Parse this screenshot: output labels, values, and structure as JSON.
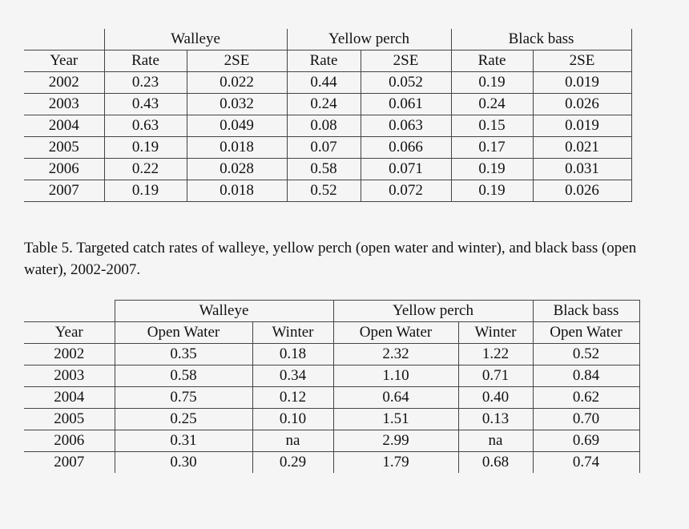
{
  "table1": {
    "groups": [
      "Walleye",
      "Yellow perch",
      "Black bass"
    ],
    "columns": [
      "Year",
      "Rate",
      "2SE",
      "Rate",
      "2SE",
      "Rate",
      "2SE"
    ],
    "rows": [
      [
        "2002",
        "0.23",
        "0.022",
        "0.44",
        "0.052",
        "0.19",
        "0.019"
      ],
      [
        "2003",
        "0.43",
        "0.032",
        "0.24",
        "0.061",
        "0.24",
        "0.026"
      ],
      [
        "2004",
        "0.63",
        "0.049",
        "0.08",
        "0.063",
        "0.15",
        "0.019"
      ],
      [
        "2005",
        "0.19",
        "0.018",
        "0.07",
        "0.066",
        "0.17",
        "0.021"
      ],
      [
        "2006",
        "0.22",
        "0.028",
        "0.58",
        "0.071",
        "0.19",
        "0.031"
      ],
      [
        "2007",
        "0.19",
        "0.018",
        "0.52",
        "0.072",
        "0.19",
        "0.026"
      ]
    ]
  },
  "caption": "Table 5.  Targeted catch rates of walleye, yellow perch (open water and winter), and black bass (open water), 2002-2007.",
  "table2": {
    "groups": [
      "Walleye",
      "Yellow perch",
      "Black bass"
    ],
    "columns": [
      "Year",
      "Open Water",
      "Winter",
      "Open Water",
      "Winter",
      "Open Water"
    ],
    "rows": [
      [
        "2002",
        "0.35",
        "0.18",
        "2.32",
        "1.22",
        "0.52"
      ],
      [
        "2003",
        "0.58",
        "0.34",
        "1.10",
        "0.71",
        "0.84"
      ],
      [
        "2004",
        "0.75",
        "0.12",
        "0.64",
        "0.40",
        "0.62"
      ],
      [
        "2005",
        "0.25",
        "0.10",
        "1.51",
        "0.13",
        "0.70"
      ],
      [
        "2006",
        "0.31",
        "na",
        "2.99",
        "na",
        "0.69"
      ],
      [
        "2007",
        "0.30",
        "0.29",
        "1.79",
        "0.68",
        "0.74"
      ]
    ]
  }
}
